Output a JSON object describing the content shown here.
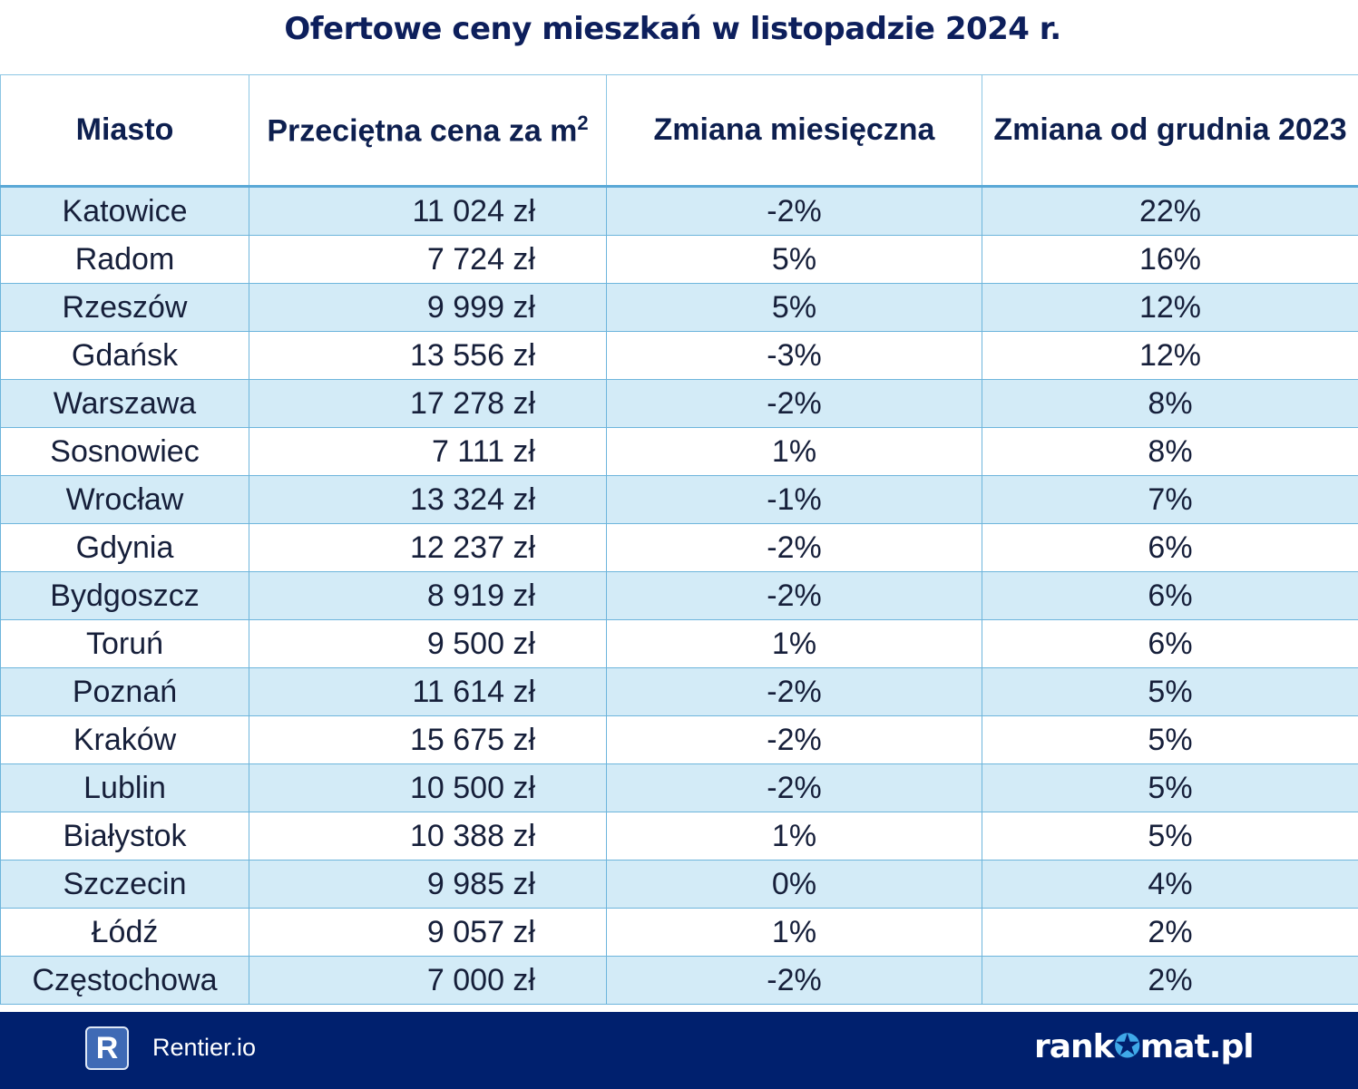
{
  "title": "Ofertowe ceny mieszkań w listopadzie 2024 r.",
  "table": {
    "headers": [
      "Miasto",
      "Przeciętna cena za m",
      "Zmiana miesięczna",
      "Zmiana od grudnia 2023"
    ],
    "header_superscript": "2",
    "rows": [
      [
        "Katowice",
        "11 024 zł",
        "-2%",
        "22%"
      ],
      [
        "Radom",
        "7 724 zł",
        "5%",
        "16%"
      ],
      [
        "Rzeszów",
        "9 999 zł",
        "5%",
        "12%"
      ],
      [
        "Gdańsk",
        "13 556 zł",
        "-3%",
        "12%"
      ],
      [
        "Warszawa",
        "17 278 zł",
        "-2%",
        "8%"
      ],
      [
        "Sosnowiec",
        "7 111 zł",
        "1%",
        "8%"
      ],
      [
        "Wrocław",
        "13 324 zł",
        "-1%",
        "7%"
      ],
      [
        "Gdynia",
        "12 237 zł",
        "-2%",
        "6%"
      ],
      [
        "Bydgoszcz",
        "8 919 zł",
        "-2%",
        "6%"
      ],
      [
        "Toruń",
        "9 500 zł",
        "1%",
        "6%"
      ],
      [
        "Poznań",
        "11 614 zł",
        "-2%",
        "5%"
      ],
      [
        "Kraków",
        "15 675 zł",
        "-2%",
        "5%"
      ],
      [
        "Lublin",
        "10 500 zł",
        "-2%",
        "5%"
      ],
      [
        "Białystok",
        "10 388 zł",
        "1%",
        "5%"
      ],
      [
        "Szczecin",
        "9 985 zł",
        "0%",
        "4%"
      ],
      [
        "Łódź",
        "9 057 zł",
        "1%",
        "2%"
      ],
      [
        "Częstochowa",
        "7 000 zł",
        "-2%",
        "2%"
      ]
    ]
  },
  "footer": {
    "rentier_logo_letter": "R",
    "rentier_name": "Rentier.io",
    "rankomat_left": "rank",
    "rankomat_right": "mat.pl",
    "background_color": "#00206e"
  },
  "colors": {
    "row_stripe": "#d3ebf7",
    "border": "#6db5dc",
    "title": "#0d1f5c"
  }
}
